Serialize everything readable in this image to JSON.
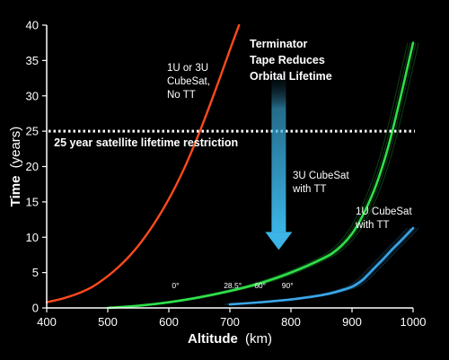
{
  "chart_data": {
    "type": "line",
    "xlabel": "Altitude",
    "xlabel_unit": "(km)",
    "ylabel": "Time",
    "ylabel_unit": "(years)",
    "xlim": [
      400,
      1000
    ],
    "ylim": [
      0,
      40
    ],
    "x_ticks": [
      "400",
      "500",
      "600",
      "700",
      "800",
      "900",
      "1000"
    ],
    "y_ticks": [
      "0",
      "5",
      "10",
      "15",
      "20",
      "25",
      "30",
      "35",
      "40"
    ],
    "grid": false,
    "colors": {
      "no_tt": "#ff4a1c",
      "tt_3u": "#2ee04a",
      "tt_1u": "#3aa6e8",
      "arrow": "#3cb4e6",
      "threshold": "#ffffff"
    },
    "series": [
      {
        "key": "no_tt",
        "x": [
          400,
          425,
          450,
          475,
          500,
          525,
          550,
          575,
          600,
          625,
          650,
          675,
          700,
          715
        ],
        "y": [
          0.8,
          1.3,
          2.0,
          3.0,
          4.5,
          6.4,
          8.8,
          11.8,
          15.4,
          19.7,
          24.8,
          30.5,
          36.5,
          40
        ]
      },
      {
        "key": "tt_3u",
        "x": [
          500,
          550,
          600,
          650,
          700,
          750,
          800,
          850,
          875,
          900,
          920,
          940,
          960,
          980,
          1000
        ],
        "y": [
          0,
          0.3,
          0.8,
          1.5,
          2.4,
          3.5,
          5.0,
          6.9,
          8.2,
          10.5,
          13.5,
          17.5,
          23.0,
          30.0,
          37.5
        ]
      },
      {
        "key": "tt_1u",
        "x": [
          700,
          750,
          800,
          850,
          875,
          900,
          915,
          925,
          935,
          950,
          965,
          980,
          1000
        ],
        "y": [
          0.5,
          0.8,
          1.2,
          1.8,
          2.3,
          3.0,
          3.8,
          4.6,
          5.5,
          6.8,
          8.2,
          9.5,
          11.3
        ]
      }
    ],
    "threshold": {
      "y": 25,
      "label": "25 year satellite lifetime restriction"
    },
    "labels": {
      "no_tt": [
        "1U or 3U",
        "CubeSat,",
        "No TT"
      ],
      "tt_3u": [
        "3U CubeSat",
        "with TT"
      ],
      "tt_1u": [
        "1U CubeSat",
        "with TT"
      ],
      "tape_note": [
        "Terminator",
        "Tape Reduces",
        "Orbital Lifetime"
      ]
    },
    "inclination_labels": [
      {
        "text": "0°",
        "x": 605,
        "y": 2.8
      },
      {
        "text": "28.5°",
        "x": 690,
        "y": 2.8
      },
      {
        "text": "60°",
        "x": 740,
        "y": 2.8
      },
      {
        "text": "90°",
        "x": 785,
        "y": 2.8
      }
    ],
    "arrow": {
      "x": 780,
      "y_from": 34,
      "y_to": 8.2
    }
  }
}
